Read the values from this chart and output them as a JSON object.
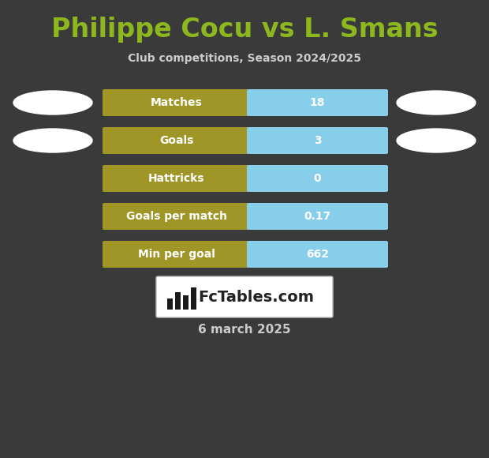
{
  "title": "Philippe Cocu vs L. Smans",
  "subtitle": "Club competitions, Season 2024/2025",
  "date_label": "6 march 2025",
  "background_color": "#3a3a3a",
  "title_color": "#8cb81e",
  "subtitle_color": "#cccccc",
  "date_color": "#cccccc",
  "stats": [
    {
      "label": "Matches",
      "value": "18"
    },
    {
      "label": "Goals",
      "value": "3"
    },
    {
      "label": "Hattricks",
      "value": "0"
    },
    {
      "label": "Goals per match",
      "value": "0.17"
    },
    {
      "label": "Min per goal",
      "value": "662"
    }
  ],
  "bar_left_color": "#a09628",
  "bar_right_color": "#87ceeb",
  "bar_text_color": "#ffffff",
  "ellipse_color": "#ffffff",
  "logo_box_color": "#ffffff",
  "logo_text": "FcTables.com",
  "logo_text_color": "#222222"
}
